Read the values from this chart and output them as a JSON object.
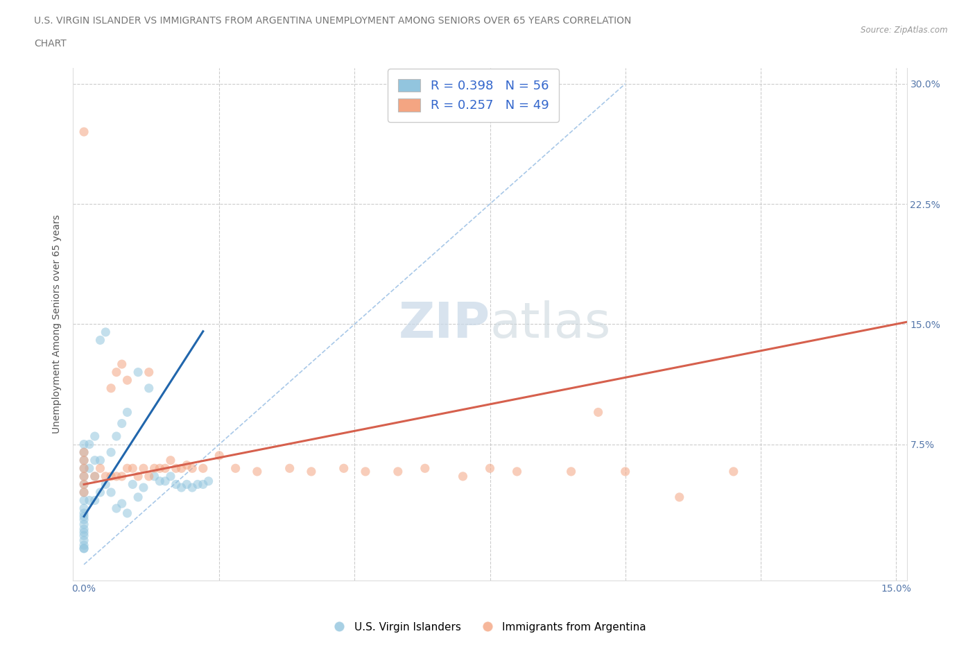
{
  "title_line1": "U.S. VIRGIN ISLANDER VS IMMIGRANTS FROM ARGENTINA UNEMPLOYMENT AMONG SENIORS OVER 65 YEARS CORRELATION",
  "title_line2": "CHART",
  "source_text": "Source: ZipAtlas.com",
  "ylabel": "Unemployment Among Seniors over 65 years",
  "xlim": [
    -0.002,
    0.152
  ],
  "ylim": [
    -0.01,
    0.31
  ],
  "blue_color": "#92c5de",
  "pink_color": "#f4a582",
  "blue_line_color": "#2166ac",
  "pink_line_color": "#d6604d",
  "dashed_line_color": "#92c5de",
  "R_blue": 0.398,
  "N_blue": 56,
  "R_pink": 0.257,
  "N_pink": 49,
  "watermark": "ZIPatlas",
  "legend_label_blue": "U.S. Virgin Islanders",
  "legend_label_pink": "Immigrants from Argentina",
  "blue_points_x": [
    0.0,
    0.0,
    0.0,
    0.0,
    0.0,
    0.0,
    0.0,
    0.0,
    0.0,
    0.0,
    0.0,
    0.0,
    0.0,
    0.0,
    0.0,
    0.0,
    0.0,
    0.0,
    0.0,
    0.0,
    0.001,
    0.001,
    0.001,
    0.002,
    0.002,
    0.002,
    0.002,
    0.003,
    0.003,
    0.003,
    0.004,
    0.004,
    0.005,
    0.005,
    0.006,
    0.006,
    0.007,
    0.007,
    0.008,
    0.008,
    0.009,
    0.01,
    0.01,
    0.011,
    0.012,
    0.013,
    0.014,
    0.015,
    0.016,
    0.017,
    0.018,
    0.019,
    0.02,
    0.021,
    0.022,
    0.023
  ],
  "blue_points_y": [
    0.01,
    0.015,
    0.02,
    0.025,
    0.03,
    0.035,
    0.04,
    0.045,
    0.05,
    0.055,
    0.06,
    0.065,
    0.07,
    0.075,
    0.01,
    0.012,
    0.018,
    0.022,
    0.028,
    0.032,
    0.04,
    0.06,
    0.075,
    0.04,
    0.055,
    0.065,
    0.08,
    0.045,
    0.065,
    0.14,
    0.05,
    0.145,
    0.045,
    0.07,
    0.035,
    0.08,
    0.038,
    0.088,
    0.032,
    0.095,
    0.05,
    0.042,
    0.12,
    0.048,
    0.11,
    0.055,
    0.052,
    0.052,
    0.055,
    0.05,
    0.048,
    0.05,
    0.048,
    0.05,
    0.05,
    0.052
  ],
  "pink_points_x": [
    0.0,
    0.0,
    0.0,
    0.0,
    0.0,
    0.0,
    0.0,
    0.002,
    0.003,
    0.004,
    0.005,
    0.005,
    0.006,
    0.006,
    0.007,
    0.007,
    0.008,
    0.008,
    0.009,
    0.01,
    0.011,
    0.012,
    0.012,
    0.013,
    0.014,
    0.015,
    0.016,
    0.017,
    0.018,
    0.019,
    0.02,
    0.022,
    0.025,
    0.028,
    0.032,
    0.038,
    0.042,
    0.048,
    0.052,
    0.058,
    0.063,
    0.07,
    0.075,
    0.08,
    0.09,
    0.095,
    0.1,
    0.11,
    0.12
  ],
  "pink_points_y": [
    0.045,
    0.05,
    0.055,
    0.06,
    0.065,
    0.07,
    0.27,
    0.055,
    0.06,
    0.055,
    0.055,
    0.11,
    0.055,
    0.12,
    0.055,
    0.125,
    0.06,
    0.115,
    0.06,
    0.055,
    0.06,
    0.055,
    0.12,
    0.06,
    0.06,
    0.06,
    0.065,
    0.06,
    0.06,
    0.062,
    0.06,
    0.06,
    0.068,
    0.06,
    0.058,
    0.06,
    0.058,
    0.06,
    0.058,
    0.058,
    0.06,
    0.055,
    0.06,
    0.058,
    0.058,
    0.095,
    0.058,
    0.042,
    0.058
  ]
}
